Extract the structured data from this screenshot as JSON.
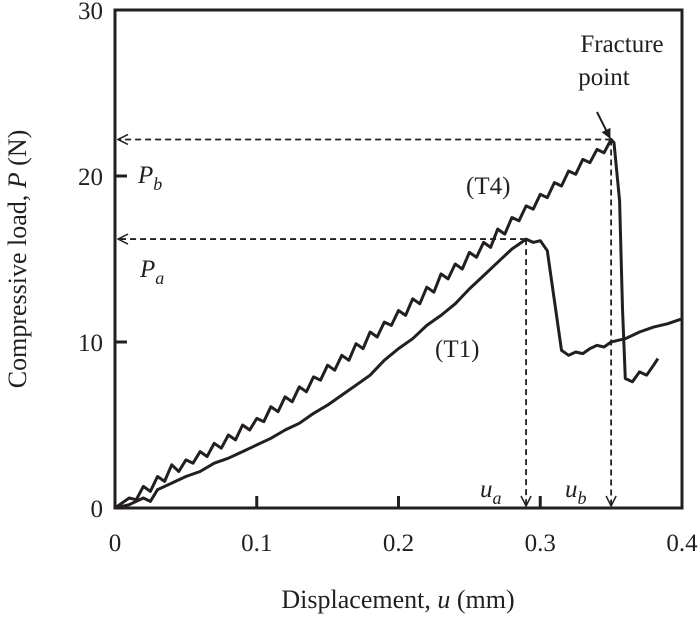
{
  "chart_data": {
    "type": "line",
    "title": "",
    "xlabel": "Displacement, u (mm)",
    "xlabel_parts": {
      "prefix": "Displacement, ",
      "var": "u",
      "suffix": " (mm)"
    },
    "ylabel": "Compressive load, P (N)",
    "ylabel_parts": {
      "prefix": "Compressive load, ",
      "var": "P",
      "suffix": " (N)"
    },
    "xlim": [
      0,
      0.4
    ],
    "ylim": [
      0,
      30
    ],
    "xticks": [
      "0",
      "0.1",
      "0.2",
      "0.3",
      "0.4"
    ],
    "xtick_values": [
      0,
      0.1,
      0.2,
      0.3,
      0.4
    ],
    "yticks": [
      "0",
      "10",
      "20",
      "30"
    ],
    "ytick_values": [
      0,
      10,
      20,
      30
    ],
    "grid": false,
    "series": [
      {
        "name": "(T4)",
        "x": [
          0,
          0.005,
          0.01,
          0.015,
          0.02,
          0.025,
          0.03,
          0.035,
          0.04,
          0.045,
          0.05,
          0.055,
          0.06,
          0.065,
          0.07,
          0.075,
          0.08,
          0.085,
          0.09,
          0.095,
          0.1,
          0.105,
          0.11,
          0.115,
          0.12,
          0.125,
          0.13,
          0.135,
          0.14,
          0.145,
          0.15,
          0.155,
          0.16,
          0.165,
          0.17,
          0.175,
          0.18,
          0.185,
          0.19,
          0.195,
          0.2,
          0.205,
          0.21,
          0.215,
          0.22,
          0.225,
          0.23,
          0.235,
          0.24,
          0.245,
          0.25,
          0.255,
          0.26,
          0.265,
          0.27,
          0.275,
          0.28,
          0.285,
          0.29,
          0.295,
          0.3,
          0.305,
          0.31,
          0.315,
          0.32,
          0.325,
          0.33,
          0.335,
          0.34,
          0.345,
          0.35,
          0.352,
          0.356,
          0.358,
          0.36,
          0.365,
          0.37,
          0.375,
          0.38,
          0.383
        ],
        "y": [
          0,
          0.3,
          0.6,
          0.5,
          1.3,
          1.0,
          1.9,
          1.6,
          2.6,
          2.2,
          2.9,
          2.7,
          3.4,
          3.1,
          3.9,
          3.6,
          4.4,
          4.1,
          5.0,
          4.7,
          5.4,
          5.2,
          6.1,
          5.8,
          6.7,
          6.4,
          7.3,
          7.0,
          7.9,
          7.7,
          8.6,
          8.3,
          9.2,
          8.9,
          9.9,
          9.6,
          10.6,
          10.3,
          11.2,
          11.0,
          11.9,
          11.6,
          12.6,
          12.3,
          13.3,
          13.0,
          14.1,
          13.8,
          14.7,
          14.4,
          15.4,
          15.1,
          16.0,
          15.7,
          16.8,
          16.5,
          17.5,
          17.3,
          18.2,
          18.0,
          18.9,
          18.7,
          19.6,
          19.4,
          20.3,
          20.1,
          21.0,
          20.8,
          21.6,
          21.4,
          22.2,
          22.0,
          18.5,
          12,
          7.8,
          7.6,
          8.2,
          8.0,
          8.6,
          9.0
        ]
      },
      {
        "name": "(T1)",
        "x": [
          0,
          0.01,
          0.02,
          0.025,
          0.03,
          0.04,
          0.05,
          0.06,
          0.07,
          0.08,
          0.09,
          0.1,
          0.11,
          0.12,
          0.13,
          0.14,
          0.15,
          0.16,
          0.17,
          0.18,
          0.19,
          0.2,
          0.21,
          0.22,
          0.23,
          0.24,
          0.25,
          0.26,
          0.27,
          0.28,
          0.285,
          0.29,
          0.295,
          0.3,
          0.305,
          0.31,
          0.315,
          0.32,
          0.325,
          0.33,
          0.335,
          0.34,
          0.345,
          0.35,
          0.355,
          0.36,
          0.365,
          0.37,
          0.38,
          0.39,
          0.4
        ],
        "y": [
          0,
          0.2,
          0.6,
          0.4,
          1.1,
          1.5,
          1.9,
          2.2,
          2.7,
          3.0,
          3.4,
          3.8,
          4.2,
          4.7,
          5.1,
          5.7,
          6.2,
          6.8,
          7.4,
          8.0,
          8.9,
          9.6,
          10.2,
          11.0,
          11.6,
          12.3,
          13.2,
          14.0,
          14.8,
          15.6,
          15.9,
          16.2,
          16.0,
          16.1,
          15.5,
          12.5,
          9.5,
          9.2,
          9.4,
          9.3,
          9.6,
          9.8,
          9.7,
          10.0,
          10.1,
          10.2,
          10.4,
          10.6,
          10.9,
          11.1,
          11.4
        ]
      }
    ],
    "annotations": {
      "fracture_label_line1": "Fracture",
      "fracture_label_line2": "point",
      "T4_label": "(T4)",
      "T1_label": "(T1)",
      "Pa": {
        "symbol": "P",
        "sub": "a",
        "value": 16.2
      },
      "Pb": {
        "symbol": "P",
        "sub": "b",
        "value": 22.2
      },
      "ua": {
        "symbol": "u",
        "sub": "a",
        "value": 0.29
      },
      "ub": {
        "symbol": "u",
        "sub": "b",
        "value": 0.35
      }
    }
  }
}
